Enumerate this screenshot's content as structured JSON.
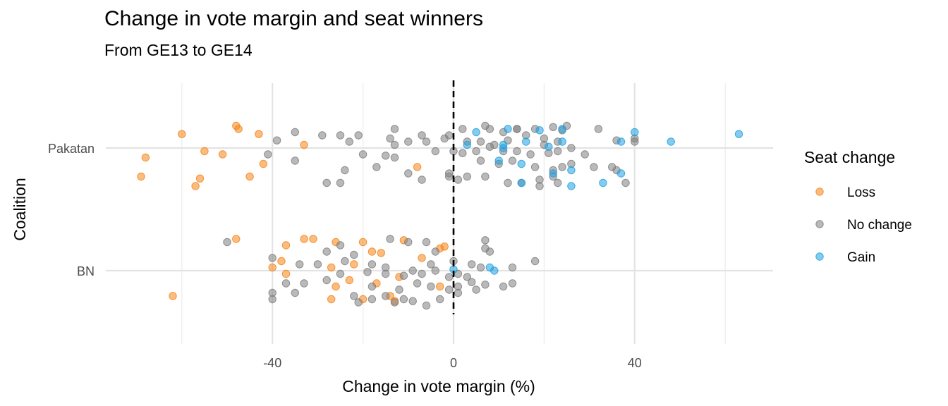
{
  "chart_data": {
    "type": "scatter",
    "title": "Change in vote margin and seat winners",
    "subtitle": "From GE13 to GE14",
    "xlabel": "Change in vote margin (%)",
    "ylabel": "Coalition",
    "xlim": [
      -70,
      70
    ],
    "x_ticks": [
      -40,
      0,
      40
    ],
    "x_tick_labels": [
      "-40",
      "0",
      "40"
    ],
    "categories": [
      "BN",
      "Pakatan"
    ],
    "grid": true,
    "reference_line": {
      "x": 0,
      "style": "dashed"
    },
    "legend": {
      "title": "Seat change",
      "placement": "right",
      "entries": [
        "Loss",
        "No change",
        "Gain"
      ]
    },
    "colors": {
      "Loss": "#F58518",
      "No change": "#7f7f7f",
      "Gain": "#1fa0e0"
    },
    "series": [
      {
        "name": "Loss",
        "points": [
          [
            "Pakatan",
            -48,
            0.35
          ],
          [
            "Pakatan",
            -47.5,
            0.3
          ],
          [
            "Pakatan",
            -60,
            0.22
          ],
          [
            "Pakatan",
            -43,
            0.22
          ],
          [
            "Pakatan",
            -33,
            0.05
          ],
          [
            "Pakatan",
            -55,
            -0.05
          ],
          [
            "Pakatan",
            -51,
            -0.1
          ],
          [
            "Pakatan",
            -68,
            -0.15
          ],
          [
            "Pakatan",
            -42,
            -0.25
          ],
          [
            "Pakatan",
            -8,
            -0.3
          ],
          [
            "Pakatan",
            -45,
            -0.45
          ],
          [
            "Pakatan",
            -56,
            -0.48
          ],
          [
            "Pakatan",
            -69,
            -0.45
          ],
          [
            "Pakatan",
            -57,
            -0.6
          ],
          [
            "BN",
            -48,
            0.5
          ],
          [
            "BN",
            -33,
            0.5
          ],
          [
            "BN",
            -31,
            0.5
          ],
          [
            "BN",
            -37,
            0.4
          ],
          [
            "BN",
            -26,
            0.45
          ],
          [
            "BN",
            -20,
            0.45
          ],
          [
            "BN",
            -11,
            0.48
          ],
          [
            "BN",
            -18,
            0.3
          ],
          [
            "BN",
            -2,
            0.38
          ],
          [
            "BN",
            -3,
            0.35
          ],
          [
            "BN",
            -16,
            0.28
          ],
          [
            "BN",
            -7,
            0.2
          ],
          [
            "BN",
            -38,
            0.15
          ],
          [
            "BN",
            -40,
            0.05
          ],
          [
            "BN",
            -22,
            0.1
          ],
          [
            "BN",
            -27,
            0.05
          ],
          [
            "BN",
            -37,
            -0.05
          ],
          [
            "BN",
            -26,
            -0.25
          ],
          [
            "BN",
            -23,
            -0.15
          ],
          [
            "BN",
            -17,
            -0.2
          ],
          [
            "BN",
            -62,
            -0.4
          ],
          [
            "BN",
            -27,
            -0.45
          ],
          [
            "BN",
            -20,
            -0.45
          ],
          [
            "BN",
            -13,
            -0.48
          ],
          [
            "BN",
            -14,
            -0.4
          ],
          [
            "BN",
            -3,
            -0.25
          ],
          [
            "BN",
            -12,
            -0.1
          ]
        ]
      },
      {
        "name": "No change",
        "points": [
          [
            "Pakatan",
            -25,
            0.2
          ],
          [
            "Pakatan",
            -29,
            0.2
          ],
          [
            "Pakatan",
            -35,
            0.25
          ],
          [
            "Pakatan",
            -13,
            0.3
          ],
          [
            "Pakatan",
            -21,
            0.2
          ],
          [
            "Pakatan",
            -14,
            0.15
          ],
          [
            "Pakatan",
            -10,
            0.1
          ],
          [
            "Pakatan",
            -7,
            0.2
          ],
          [
            "Pakatan",
            -2,
            0.15
          ],
          [
            "Pakatan",
            -1,
            0.2
          ],
          [
            "Pakatan",
            -23,
            0.1
          ],
          [
            "Pakatan",
            -39,
            0.12
          ],
          [
            "Pakatan",
            -6,
            0.1
          ],
          [
            "Pakatan",
            -13,
            0.05
          ],
          [
            "Pakatan",
            -4,
            -0.05
          ],
          [
            "Pakatan",
            -41,
            -0.1
          ],
          [
            "Pakatan",
            -20,
            -0.1
          ],
          [
            "Pakatan",
            -15,
            -0.12
          ],
          [
            "Pakatan",
            -13,
            -0.15
          ],
          [
            "Pakatan",
            -35,
            -0.2
          ],
          [
            "Pakatan",
            -17,
            -0.3
          ],
          [
            "Pakatan",
            -24,
            -0.35
          ],
          [
            "Pakatan",
            -28,
            -0.55
          ],
          [
            "Pakatan",
            -25,
            -0.55
          ],
          [
            "Pakatan",
            -10,
            -0.4
          ],
          [
            "Pakatan",
            -1,
            -0.45
          ],
          [
            "Pakatan",
            -7,
            -0.5
          ],
          [
            "Pakatan",
            2,
            0.3
          ],
          [
            "Pakatan",
            7,
            0.35
          ],
          [
            "Pakatan",
            8,
            0.3
          ],
          [
            "Pakatan",
            11,
            0.25
          ],
          [
            "Pakatan",
            14,
            0.3
          ],
          [
            "Pakatan",
            14,
            0.3
          ],
          [
            "Pakatan",
            18,
            0.3
          ],
          [
            "Pakatan",
            22,
            0.33
          ],
          [
            "Pakatan",
            24,
            0.28
          ],
          [
            "Pakatan",
            25,
            0.35
          ],
          [
            "Pakatan",
            32,
            0.3
          ],
          [
            "Pakatan",
            6,
            0.1
          ],
          [
            "Pakatan",
            9,
            0.05
          ],
          [
            "Pakatan",
            12,
            0.12
          ],
          [
            "Pakatan",
            16,
            0.2
          ],
          [
            "Pakatan",
            20,
            0.15
          ],
          [
            "Pakatan",
            23,
            0.1
          ],
          [
            "Pakatan",
            20,
            0.05
          ],
          [
            "Pakatan",
            26,
            0.0
          ],
          [
            "Pakatan",
            3,
            0.1
          ],
          [
            "Pakatan",
            40,
            0.15
          ],
          [
            "Pakatan",
            40,
            0.1
          ],
          [
            "Pakatan",
            36,
            0.12
          ],
          [
            "Pakatan",
            0,
            -0.05
          ],
          [
            "Pakatan",
            2,
            -0.08
          ],
          [
            "Pakatan",
            5,
            -0.05
          ],
          [
            "Pakatan",
            8,
            0.02
          ],
          [
            "Pakatan",
            11,
            -0.05
          ],
          [
            "Pakatan",
            14,
            -0.05
          ],
          [
            "Pakatan",
            17,
            -0.1
          ],
          [
            "Pakatan",
            21,
            -0.08
          ],
          [
            "Pakatan",
            23,
            -0.05
          ],
          [
            "Pakatan",
            29,
            -0.1
          ],
          [
            "Pakatan",
            6,
            -0.2
          ],
          [
            "Pakatan",
            10,
            -0.25
          ],
          [
            "Pakatan",
            13,
            -0.2
          ],
          [
            "Pakatan",
            18,
            -0.3
          ],
          [
            "Pakatan",
            22,
            -0.35
          ],
          [
            "Pakatan",
            24,
            -0.3
          ],
          [
            "Pakatan",
            26,
            -0.25
          ],
          [
            "Pakatan",
            31,
            -0.3
          ],
          [
            "Pakatan",
            35,
            -0.3
          ],
          [
            "Pakatan",
            36,
            -0.35
          ],
          [
            "Pakatan",
            -1,
            -0.4
          ],
          [
            "Pakatan",
            1,
            -0.5
          ],
          [
            "Pakatan",
            3,
            -0.45
          ],
          [
            "Pakatan",
            7,
            -0.45
          ],
          [
            "Pakatan",
            12,
            -0.55
          ],
          [
            "Pakatan",
            15,
            -0.55
          ],
          [
            "Pakatan",
            19,
            -0.5
          ],
          [
            "Pakatan",
            23,
            -0.55
          ],
          [
            "Pakatan",
            19,
            -0.6
          ],
          [
            "Pakatan",
            22,
            -0.45
          ],
          [
            "Pakatan",
            38,
            -0.55
          ],
          [
            "BN",
            -50,
            0.45
          ],
          [
            "BN",
            -40,
            0.2
          ],
          [
            "BN",
            -34,
            0.1
          ],
          [
            "BN",
            -30,
            0.1
          ],
          [
            "BN",
            -25,
            0.4
          ],
          [
            "BN",
            -28,
            0.3
          ],
          [
            "BN",
            -22,
            0.25
          ],
          [
            "BN",
            -14,
            0.5
          ],
          [
            "BN",
            -10,
            0.45
          ],
          [
            "BN",
            -6,
            0.45
          ],
          [
            "BN",
            -24,
            0.15
          ],
          [
            "BN",
            -18,
            0.1
          ],
          [
            "BN",
            -15,
            0.05
          ],
          [
            "BN",
            -9,
            0.0
          ],
          [
            "BN",
            -5,
            0.1
          ],
          [
            "BN",
            -4,
            0.3
          ],
          [
            "BN",
            0,
            0.15
          ],
          [
            "BN",
            4,
            0.1
          ],
          [
            "BN",
            6,
            0.05
          ],
          [
            "BN",
            13,
            0.05
          ],
          [
            "BN",
            7,
            0.48
          ],
          [
            "BN",
            7,
            0.35
          ],
          [
            "BN",
            8,
            0.3
          ],
          [
            "BN",
            18,
            0.15
          ],
          [
            "BN",
            -25,
            -0.05
          ],
          [
            "BN",
            -19,
            -0.02
          ],
          [
            "BN",
            -15,
            -0.05
          ],
          [
            "BN",
            -11,
            -0.08
          ],
          [
            "BN",
            -7,
            -0.05
          ],
          [
            "BN",
            -4,
            0.0
          ],
          [
            "BN",
            -1,
            -0.1
          ],
          [
            "BN",
            1,
            -0.05
          ],
          [
            "BN",
            3,
            -0.1
          ],
          [
            "BN",
            -37,
            -0.2
          ],
          [
            "BN",
            -33,
            -0.2
          ],
          [
            "BN",
            -28,
            -0.15
          ],
          [
            "BN",
            -18,
            -0.25
          ],
          [
            "BN",
            -12,
            -0.3
          ],
          [
            "BN",
            -8,
            -0.2
          ],
          [
            "BN",
            -5,
            -0.25
          ],
          [
            "BN",
            -1,
            -0.3
          ],
          [
            "BN",
            1,
            -0.25
          ],
          [
            "BN",
            4,
            -0.18
          ],
          [
            "BN",
            7,
            -0.22
          ],
          [
            "BN",
            11,
            -0.25
          ],
          [
            "BN",
            13,
            -0.2
          ],
          [
            "BN",
            -40,
            -0.35
          ],
          [
            "BN",
            -35,
            -0.35
          ],
          [
            "BN",
            -22,
            -0.4
          ],
          [
            "BN",
            -18,
            -0.45
          ],
          [
            "BN",
            -15,
            -0.4
          ],
          [
            "BN",
            -11,
            -0.45
          ],
          [
            "BN",
            -9,
            -0.48
          ],
          [
            "BN",
            -6,
            -0.55
          ],
          [
            "BN",
            -3,
            -0.45
          ],
          [
            "BN",
            1,
            -0.35
          ],
          [
            "BN",
            5,
            -0.3
          ],
          [
            "BN",
            -40,
            -0.45
          ],
          [
            "BN",
            -21,
            -0.5
          ],
          [
            "BN",
            -13,
            -0.5
          ]
        ]
      },
      {
        "name": "Gain",
        "points": [
          [
            "Pakatan",
            5,
            0.25
          ],
          [
            "Pakatan",
            12,
            0.3
          ],
          [
            "Pakatan",
            19,
            0.28
          ],
          [
            "Pakatan",
            24,
            0.3
          ],
          [
            "Pakatan",
            40,
            0.25
          ],
          [
            "Pakatan",
            63,
            0.22
          ],
          [
            "Pakatan",
            16,
            0.1
          ],
          [
            "Pakatan",
            24,
            0.1
          ],
          [
            "Pakatan",
            37,
            0.1
          ],
          [
            "Pakatan",
            48,
            0.1
          ],
          [
            "Pakatan",
            3,
            0.05
          ],
          [
            "Pakatan",
            11,
            0.05
          ],
          [
            "Pakatan",
            11,
            0.0
          ],
          [
            "Pakatan",
            21,
            0.02
          ],
          [
            "Pakatan",
            10,
            -0.2
          ],
          [
            "Pakatan",
            15,
            -0.25
          ],
          [
            "Pakatan",
            26,
            -0.35
          ],
          [
            "Pakatan",
            22,
            -0.4
          ],
          [
            "Pakatan",
            37,
            -0.4
          ],
          [
            "Pakatan",
            15,
            -0.55
          ],
          [
            "Pakatan",
            26,
            -0.6
          ],
          [
            "Pakatan",
            33,
            -0.55
          ],
          [
            "BN",
            8,
            0.05
          ],
          [
            "BN",
            9,
            0.0
          ],
          [
            "BN",
            0,
            0.02
          ]
        ]
      }
    ]
  }
}
